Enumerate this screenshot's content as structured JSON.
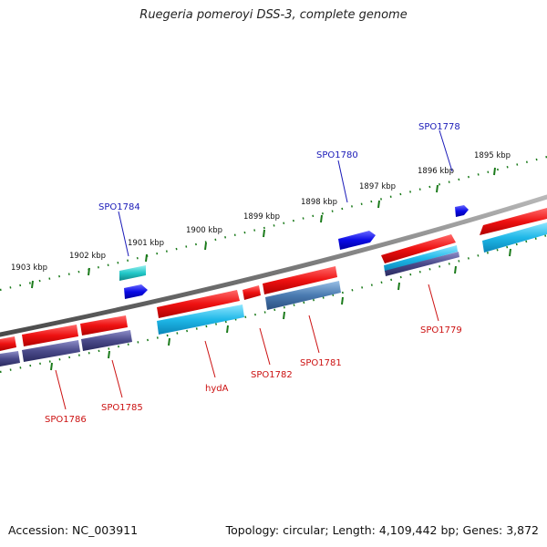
{
  "title": "Ruegeria pomeroyi DSS-3, complete genome",
  "footer": {
    "accession": "Accession: NC_003911",
    "summary": "Topology: circular; Length: 4,109,442 bp; Genes: 3,872"
  },
  "tick_labels": [
    "1895 kbp",
    "1896 kbp",
    "1897 kbp",
    "1898 kbp",
    "1899 kbp",
    "1900 kbp",
    "1901 kbp",
    "1902 kbp",
    "1903 kbp"
  ],
  "gene_labels": {
    "forward": [
      "SPO1778",
      "SPO1780",
      "SPO1784"
    ],
    "reverse": [
      "SPO1779",
      "SPO1781",
      "SPO1782",
      "hydA",
      "SPO1785",
      "SPO1786"
    ]
  },
  "colors": {
    "backbone": "#7a7a7a",
    "tick_dots": "#1a7a1a",
    "forward_gene": "#0a0ae6",
    "reverse_gene": "#ee1111",
    "cyan_feature": "#1fb8e8",
    "purple_feature": "#4a4a8a",
    "steel_feature": "#4a7ab0",
    "teal_feature": "#22c8c8"
  }
}
